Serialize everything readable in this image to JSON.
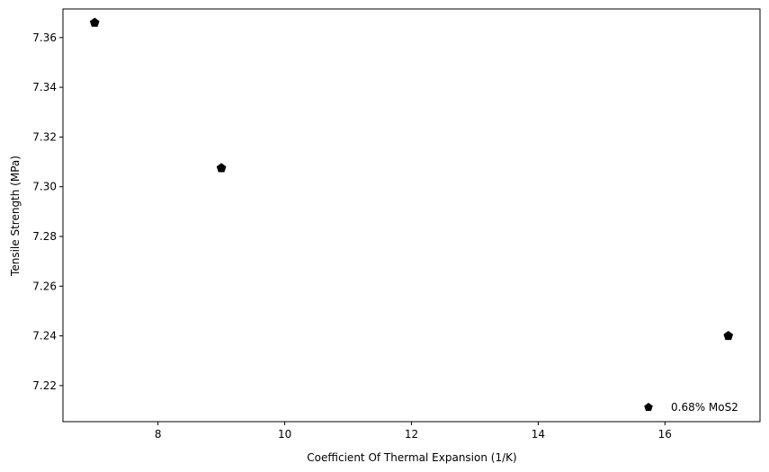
{
  "chart_data": {
    "type": "scatter",
    "xlabel": "Coefficient Of Thermal Expansion (1/K)",
    "ylabel": "Tensile Strength (MPa)",
    "xlim": [
      6.5,
      17.5
    ],
    "ylim": [
      7.2055,
      7.3715
    ],
    "x_ticks": [
      8,
      10,
      12,
      14,
      16
    ],
    "y_ticks": [
      7.22,
      7.24,
      7.26,
      7.28,
      7.3,
      7.32,
      7.34,
      7.36
    ],
    "x_tick_labels": [
      "8",
      "10",
      "12",
      "14",
      "16"
    ],
    "y_tick_labels": [
      "7.22",
      "7.24",
      "7.26",
      "7.28",
      "7.30",
      "7.32",
      "7.34",
      "7.36"
    ],
    "grid": false,
    "legend_position": "lower-right",
    "marker": "pentagon",
    "series": [
      {
        "name": "0.68% MoS2",
        "color": "#000000",
        "points": [
          {
            "x": 7,
            "y": 7.366
          },
          {
            "x": 9,
            "y": 7.3075
          },
          {
            "x": 17,
            "y": 7.24
          }
        ]
      }
    ]
  }
}
